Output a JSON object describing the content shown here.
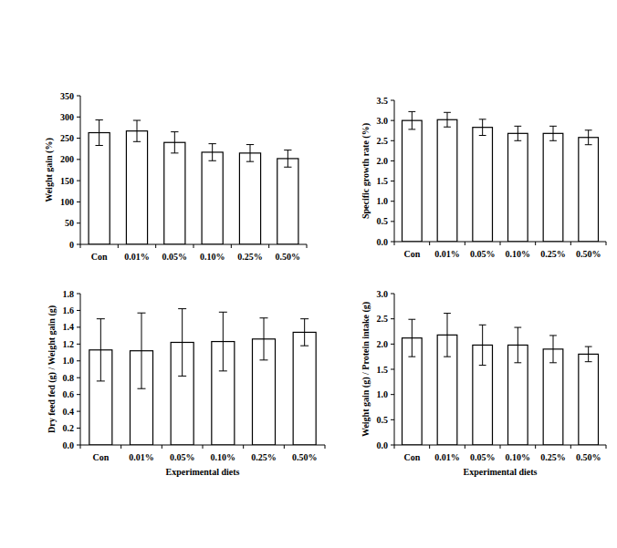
{
  "chart_data": [
    {
      "type": "bar",
      "y_label": "Weight gain (%)",
      "categories": [
        "Con",
        "0.01%",
        "0.05%",
        "0.10%",
        "0.25%",
        "0.50%"
      ],
      "values": [
        263,
        267,
        240,
        217,
        215,
        202
      ],
      "errors": [
        30,
        25,
        25,
        20,
        20,
        20
      ],
      "color": "#ffffff",
      "ylim": [
        0,
        350
      ],
      "yticks": [
        0,
        50,
        100,
        150,
        200,
        250,
        300,
        350
      ],
      "grid": false
    },
    {
      "type": "bar",
      "y_label": "Specific growth rate (%)",
      "categories": [
        "Con",
        "0.01%",
        "0.05%",
        "0.10%",
        "0.25%",
        "0.50%"
      ],
      "values": [
        3.0,
        3.02,
        2.83,
        2.68,
        2.68,
        2.58
      ],
      "errors": [
        0.22,
        0.18,
        0.2,
        0.18,
        0.18,
        0.18
      ],
      "color": "#ffffff",
      "ylim": [
        0,
        3.5
      ],
      "yticks": [
        {
          "value": 0,
          "label": "0.0"
        },
        0.5,
        {
          "value": 1,
          "label": "1.0"
        },
        1.5,
        {
          "value": 2,
          "label": "2.0"
        },
        2.5,
        {
          "value": 3,
          "label": "3.0"
        },
        3.5
      ],
      "grid": false
    },
    {
      "type": "bar",
      "y_label": "Dry feed fed (g) / Weight gain (g)",
      "x_label": "Experimental diets",
      "categories": [
        "Con",
        "0.01%",
        "0.05%",
        "0.10%",
        "0.25%",
        "0.50%"
      ],
      "values": [
        1.13,
        1.12,
        1.22,
        1.23,
        1.26,
        1.34
      ],
      "errors": [
        0.37,
        0.45,
        0.4,
        0.35,
        0.25,
        0.16
      ],
      "color": "#ffffff",
      "ylim": [
        0,
        1.8
      ],
      "yticks": [
        {
          "value": 0,
          "label": "0.0"
        },
        0.2,
        0.4,
        0.6,
        0.8,
        {
          "value": 1,
          "label": "1.0"
        },
        1.2,
        1.4,
        1.6,
        1.8
      ],
      "grid": false
    },
    {
      "type": "bar",
      "y_label": "Weight gain (g) / Protein intake (g)",
      "x_label": "Experimental diets",
      "categories": [
        "Con",
        "0.01%",
        "0.05%",
        "0.10%",
        "0.25%",
        "0.50%"
      ],
      "values": [
        2.12,
        2.18,
        1.98,
        1.98,
        1.9,
        1.8
      ],
      "errors": [
        0.37,
        0.43,
        0.4,
        0.35,
        0.27,
        0.15
      ],
      "color": "#ffffff",
      "ylim": [
        0,
        3.0
      ],
      "yticks": [
        {
          "value": 0,
          "label": "0.0"
        },
        0.5,
        {
          "value": 1,
          "label": "1.0"
        },
        1.5,
        {
          "value": 2,
          "label": "2.0"
        },
        2.5,
        {
          "value": 3,
          "label": "3.0"
        }
      ],
      "grid": false
    }
  ]
}
